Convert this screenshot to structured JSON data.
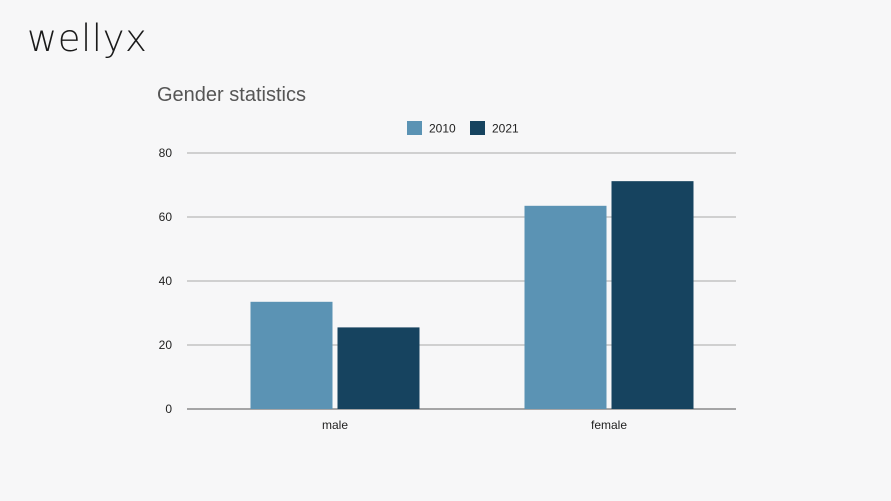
{
  "brand": {
    "logo_text": "wellyx"
  },
  "chart_data": {
    "type": "bar",
    "title": "Gender statistics",
    "categories": [
      "male",
      "female"
    ],
    "series": [
      {
        "name": "2010",
        "values": [
          33.5,
          63.5
        ],
        "color": "#5b93b4"
      },
      {
        "name": "2021",
        "values": [
          25.5,
          71.2
        ],
        "color": "#16435f"
      }
    ],
    "xlabel": "",
    "ylabel": "",
    "ylim": [
      0,
      80
    ],
    "yticks": [
      0,
      20,
      40,
      60,
      80
    ],
    "grid": true,
    "legend_position": "top-center",
    "colors": {
      "grid": "#a9a9a9",
      "axis": "#8a8a8a"
    }
  }
}
